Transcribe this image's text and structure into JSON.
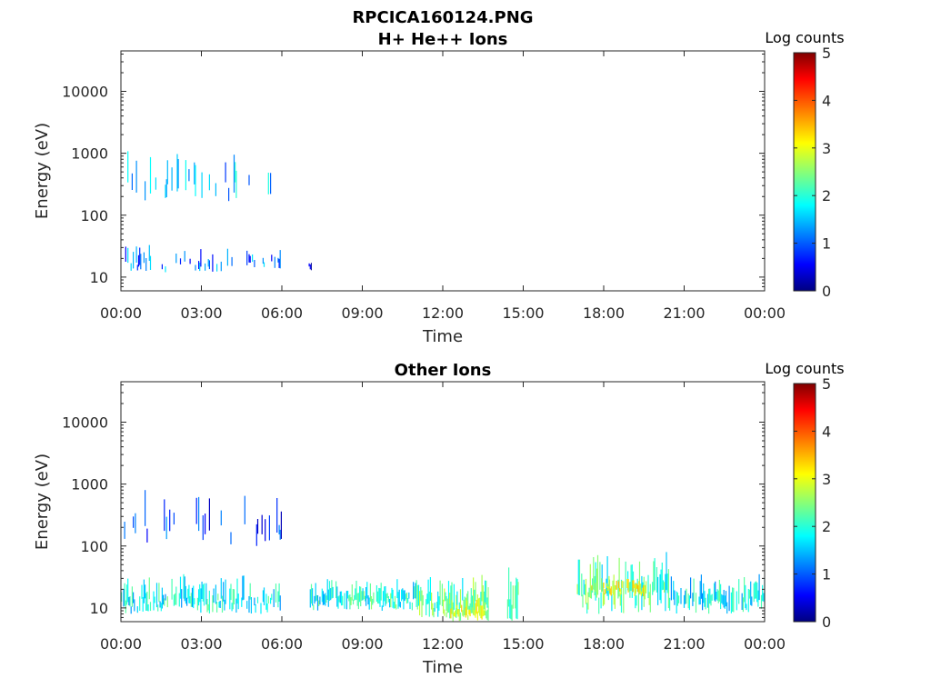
{
  "figure_title": "RPCICA160124.PNG",
  "chart_data": [
    {
      "type": "heatmap",
      "title": "H+ He++ Ions",
      "xlabel": "Time",
      "ylabel": "Energy (eV)",
      "x_ticks": [
        "00:00",
        "03:00",
        "06:00",
        "09:00",
        "12:00",
        "15:00",
        "18:00",
        "21:00",
        "00:00"
      ],
      "x_range_hours": [
        0,
        24
      ],
      "y_scale": "log",
      "y_ticks": [
        "10",
        "100",
        "1000",
        "10000"
      ],
      "y_range_eV": [
        6,
        45000
      ],
      "colorbar": {
        "label": "Log counts",
        "range": [
          0,
          5
        ],
        "ticks": [
          "0",
          "1",
          "2",
          "3",
          "4",
          "5"
        ],
        "colormap": "jet"
      },
      "bands": [
        {
          "t_start": 0.0,
          "t_end": 6.0,
          "e_low": 150,
          "e_high": 1500,
          "level": 1.5,
          "density": 0.25
        },
        {
          "t_start": 0.0,
          "t_end": 6.0,
          "e_low": 12,
          "e_high": 35,
          "level": 1.2,
          "density": 0.35
        },
        {
          "t_start": 7.0,
          "t_end": 7.1,
          "e_low": 12,
          "e_high": 22,
          "level": 0.3,
          "density": 1.0
        }
      ]
    },
    {
      "type": "heatmap",
      "title": "Other Ions",
      "xlabel": "Time",
      "ylabel": "Energy (eV)",
      "x_ticks": [
        "00:00",
        "03:00",
        "06:00",
        "09:00",
        "12:00",
        "15:00",
        "18:00",
        "21:00",
        "00:00"
      ],
      "x_range_hours": [
        0,
        24
      ],
      "y_scale": "log",
      "y_ticks": [
        "10",
        "100",
        "1000",
        "10000"
      ],
      "y_range_eV": [
        6,
        45000
      ],
      "colorbar": {
        "label": "Log counts",
        "range": [
          0,
          5
        ],
        "ticks": [
          "0",
          "1",
          "2",
          "3",
          "4",
          "5"
        ],
        "colormap": "jet"
      },
      "bands": [
        {
          "t_start": 0.0,
          "t_end": 6.0,
          "e_low": 100,
          "e_high": 800,
          "level": 0.8,
          "density": 0.18
        },
        {
          "t_start": 0.0,
          "t_end": 6.0,
          "e_low": 8,
          "e_high": 35,
          "level": 1.9,
          "density": 0.75
        },
        {
          "t_start": 7.0,
          "t_end": 11.0,
          "e_low": 9,
          "e_high": 30,
          "level": 2.0,
          "density": 0.9
        },
        {
          "t_start": 11.0,
          "t_end": 13.7,
          "e_low": 7,
          "e_high": 35,
          "level": 2.3,
          "density": 0.85
        },
        {
          "t_start": 12.0,
          "t_end": 13.7,
          "e_low": 6,
          "e_high": 15,
          "level": 2.8,
          "density": 0.9
        },
        {
          "t_start": 14.4,
          "t_end": 14.8,
          "e_low": 6,
          "e_high": 80,
          "level": 2.2,
          "density": 0.9
        },
        {
          "t_start": 17.0,
          "t_end": 20.5,
          "e_low": 8,
          "e_high": 80,
          "level": 2.2,
          "density": 0.85
        },
        {
          "t_start": 17.5,
          "t_end": 19.5,
          "e_low": 15,
          "e_high": 35,
          "level": 2.9,
          "density": 0.7
        },
        {
          "t_start": 20.5,
          "t_end": 24.0,
          "e_low": 8,
          "e_high": 35,
          "level": 1.8,
          "density": 0.85
        }
      ]
    }
  ]
}
